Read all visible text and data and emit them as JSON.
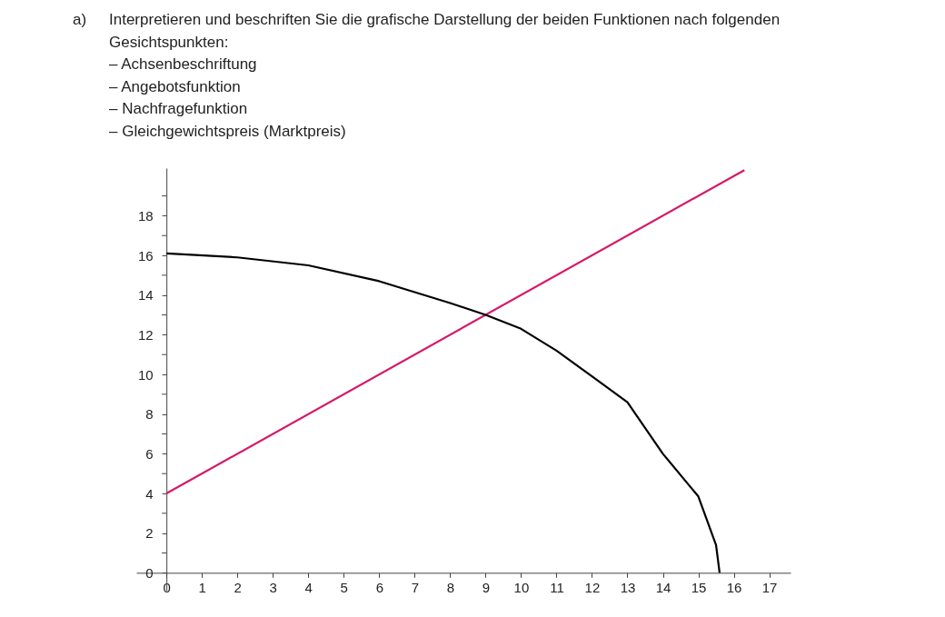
{
  "chart_data": {
    "type": "line",
    "title": "Interpretieren und beschriften Sie die grafische Darstellung der beiden Funktionen nach folgenden Gesichtspunkten:",
    "annotations": [
      "a)",
      "– Achsenbeschriftung",
      "– Angebotsfunktion",
      "– Nachfragefunktion",
      "– Gleichgewichtspreis (Marktpreis)"
    ],
    "series": [
      {
        "color": "#d6186a",
        "x": [
          0,
          16.3
        ],
        "values": [
          4,
          20.3
        ]
      },
      {
        "color": "#000000",
        "x": [
          0,
          2,
          4,
          6,
          8,
          9,
          10,
          11,
          12,
          13,
          14,
          15,
          15.5,
          15.6
        ],
        "values": [
          16.1,
          15.9,
          15.5,
          14.7,
          13.6,
          13.0,
          12.3,
          11.2,
          9.9,
          8.6,
          6.0,
          3.85,
          1.4,
          0
        ]
      }
    ],
    "xlim": [
      -0.85,
      17.6
    ],
    "ylim": [
      -0.9,
      20.4
    ],
    "xticks": [
      0,
      1,
      2,
      3,
      4,
      5,
      6,
      7,
      8,
      9,
      10,
      11,
      12,
      13,
      14,
      15,
      16,
      17
    ],
    "yticks": [
      0,
      {
        "value": 1,
        "label": null
      },
      2,
      {
        "value": 3,
        "label": null
      },
      4,
      {
        "value": 5,
        "label": null
      },
      6,
      {
        "value": 7,
        "label": null
      },
      8,
      {
        "value": 9,
        "label": null
      },
      10,
      {
        "value": 11,
        "label": null
      },
      12,
      {
        "value": 13,
        "label": null
      },
      14,
      {
        "value": 15,
        "label": null
      },
      16,
      {
        "value": 17,
        "label": null
      },
      18,
      {
        "value": 19,
        "label": null
      }
    ],
    "grid": false,
    "marker": "none",
    "line_style": "solid"
  }
}
